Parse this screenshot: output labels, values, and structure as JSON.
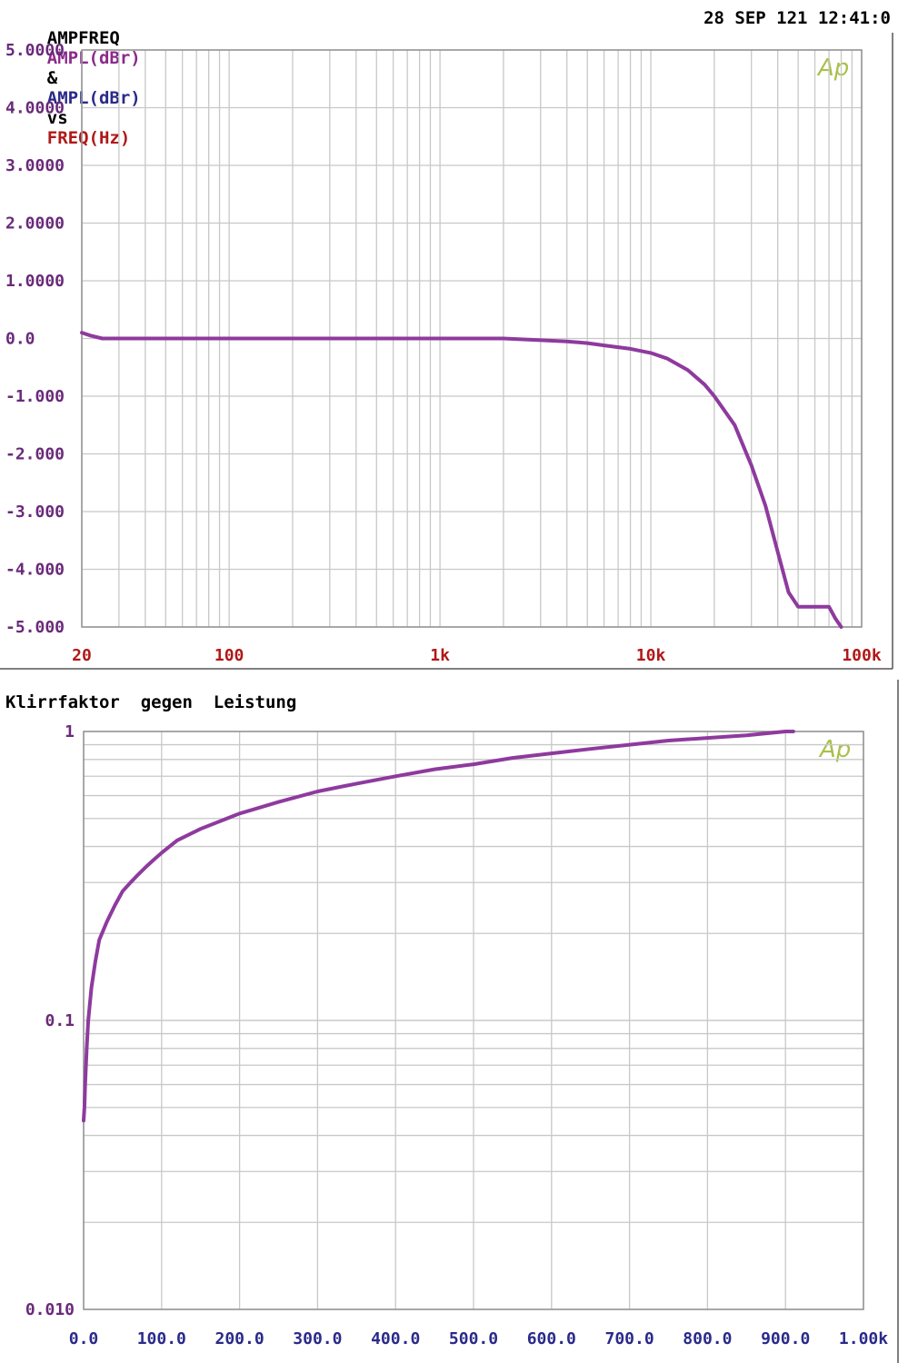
{
  "panel1": {
    "header": {
      "left": [
        {
          "text": "AMPFREQ",
          "color": "#000000"
        },
        {
          "text": "AMPL(dBr)",
          "color": "#8a2a8a"
        },
        {
          "text": "&",
          "color": "#000000"
        },
        {
          "text": "AMPL(dBr)",
          "color": "#2a2a8a"
        },
        {
          "text": "vs",
          "color": "#000000"
        },
        {
          "text": "FREQ(Hz)",
          "color": "#b01818"
        }
      ],
      "right": "28 SEP 121 12:41:0"
    },
    "logo": "Ap"
  },
  "panel2": {
    "title": "Klirrfaktor  gegen  Leistung",
    "logo": "Ap"
  },
  "chart_data": [
    {
      "type": "line",
      "title": "AMPFREQ AMPL(dBr) & AMPL(dBr) vs FREQ(Hz)",
      "xlabel": "FREQ(Hz)",
      "ylabel": "AMPL(dBr)",
      "x_scale": "log",
      "xlim": [
        20,
        100000
      ],
      "ylim": [
        -5,
        5
      ],
      "x_tick_labels": [
        {
          "value": 20,
          "label": "20"
        },
        {
          "value": 100,
          "label": "100"
        },
        {
          "value": 1000,
          "label": "1k"
        },
        {
          "value": 10000,
          "label": "10k"
        },
        {
          "value": 100000,
          "label": "100k"
        }
      ],
      "y_tick_labels": [
        {
          "value": 5,
          "label": "5.0000"
        },
        {
          "value": 4,
          "label": "4.0000"
        },
        {
          "value": 3,
          "label": "3.0000"
        },
        {
          "value": 2,
          "label": "2.0000"
        },
        {
          "value": 1,
          "label": "1.0000"
        },
        {
          "value": 0,
          "label": "0.0"
        },
        {
          "value": -1,
          "label": "-1.000"
        },
        {
          "value": -2,
          "label": "-2.000"
        },
        {
          "value": -3,
          "label": "-3.000"
        },
        {
          "value": -4,
          "label": "-4.000"
        },
        {
          "value": -5,
          "label": "-5.000"
        }
      ],
      "grid": true,
      "line_color": "#8e3a9e",
      "series": [
        {
          "x": [
            20,
            22,
            25,
            30,
            50,
            100,
            500,
            1000,
            2000,
            3000,
            4000,
            5000,
            6000,
            8000,
            10000,
            12000,
            15000,
            18000,
            20000,
            25000,
            30000,
            35000,
            40000,
            45000,
            50000,
            55000,
            60000,
            70000,
            75000,
            80000
          ],
          "y": [
            0.1,
            0.05,
            0.0,
            0.0,
            0.0,
            0.0,
            0.0,
            0.0,
            0.0,
            -0.03,
            -0.05,
            -0.08,
            -0.12,
            -0.18,
            -0.25,
            -0.35,
            -0.55,
            -0.8,
            -1.0,
            -1.5,
            -2.2,
            -2.9,
            -3.7,
            -4.4,
            -4.65,
            -4.65,
            -4.65,
            -4.65,
            -4.85,
            -5.0
          ]
        }
      ]
    },
    {
      "type": "line",
      "title": "Klirrfaktor  gegen  Leistung",
      "y_scale": "log",
      "xlim": [
        0,
        1000
      ],
      "ylim": [
        0.01,
        1
      ],
      "x_tick_labels": [
        {
          "value": 0,
          "label": "0.0"
        },
        {
          "value": 100,
          "label": "100.0"
        },
        {
          "value": 200,
          "label": "200.0"
        },
        {
          "value": 300,
          "label": "300.0"
        },
        {
          "value": 400,
          "label": "400.0"
        },
        {
          "value": 500,
          "label": "500.0"
        },
        {
          "value": 600,
          "label": "600.0"
        },
        {
          "value": 700,
          "label": "700.0"
        },
        {
          "value": 800,
          "label": "800.0"
        },
        {
          "value": 900,
          "label": "900.0"
        },
        {
          "value": 1000,
          "label": "1.00k"
        }
      ],
      "y_tick_labels": [
        {
          "value": 1,
          "label": "1"
        },
        {
          "value": 0.1,
          "label": "0.1"
        },
        {
          "value": 0.01,
          "label": "0.010"
        }
      ],
      "grid": true,
      "line_color": "#8e3a9e",
      "series": [
        {
          "x": [
            0,
            1,
            2,
            4,
            6,
            10,
            15,
            20,
            30,
            40,
            50,
            60,
            70,
            80,
            90,
            100,
            120,
            150,
            200,
            250,
            300,
            350,
            400,
            450,
            500,
            550,
            600,
            650,
            700,
            750,
            800,
            850,
            900,
            910
          ],
          "y": [
            0.045,
            0.05,
            0.06,
            0.08,
            0.1,
            0.13,
            0.16,
            0.19,
            0.22,
            0.25,
            0.28,
            0.3,
            0.32,
            0.34,
            0.36,
            0.38,
            0.42,
            0.46,
            0.52,
            0.57,
            0.62,
            0.66,
            0.7,
            0.74,
            0.77,
            0.81,
            0.84,
            0.87,
            0.9,
            0.93,
            0.95,
            0.97,
            1.0,
            1.0
          ]
        }
      ]
    }
  ]
}
